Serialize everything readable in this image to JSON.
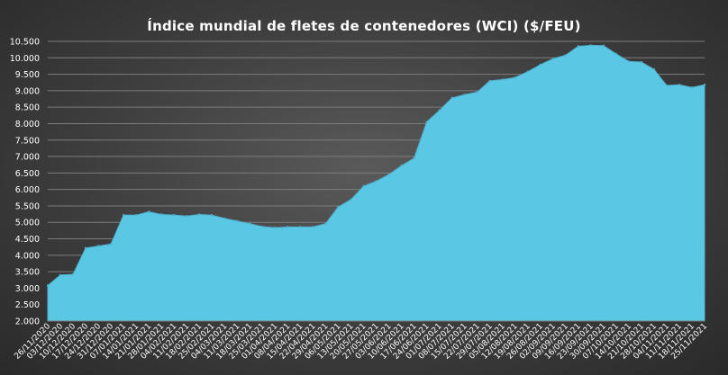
{
  "chart_data": {
    "type": "area",
    "title": "Índice mundial de fletes de contenedores (WCI) ($/FEU)",
    "xlabel": "",
    "ylabel": "",
    "ylim": [
      2000,
      10500
    ],
    "yticks": [
      "2.000",
      "2.500",
      "3.000",
      "3.500",
      "4.000",
      "4.500",
      "5.000",
      "5.500",
      "6.000",
      "6.500",
      "7.000",
      "7.500",
      "8.000",
      "8.500",
      "9.000",
      "9.500",
      "10.000",
      "10.500"
    ],
    "x": [
      "26/11/2020",
      "03/12/2020",
      "10/12/2020",
      "17/12/2020",
      "24/12/2020",
      "31/12/2020",
      "07/01/2021",
      "14/01/2021",
      "21/01/2021",
      "28/01/2021",
      "04/02/2021",
      "11/02/2021",
      "18/02/2021",
      "25/02/2021",
      "04/03/2021",
      "11/03/2021",
      "18/03/2021",
      "25/03/2021",
      "01/04/2021",
      "08/04/2021",
      "15/04/2021",
      "22/04/2021",
      "29/04/2021",
      "06/05/2021",
      "13/05/2021",
      "20/05/2021",
      "27/05/2021",
      "03/06/2021",
      "10/06/2021",
      "17/06/2021",
      "24/06/2021",
      "01/07/2021",
      "08/07/2021",
      "15/07/2021",
      "22/07/2021",
      "29/07/2021",
      "05/08/2021",
      "12/08/2021",
      "19/08/2021",
      "26/08/2021",
      "02/09/2021",
      "09/09/2021",
      "16/09/2021",
      "23/09/2021",
      "30/09/2021",
      "07/10/2021",
      "14/10/2021",
      "21/10/2021",
      "28/10/2021",
      "04/11/2021",
      "11/11/2021",
      "18/11/2021",
      "25/11/2021"
    ],
    "series": [
      {
        "values": [
          3080,
          3400,
          3420,
          4220,
          4280,
          4340,
          5220,
          5220,
          5320,
          5240,
          5220,
          5190,
          5240,
          5220,
          5120,
          5040,
          4960,
          4870,
          4840,
          4860,
          4860,
          4860,
          4960,
          5470,
          5690,
          6100,
          6250,
          6450,
          6720,
          6950,
          8050,
          8400,
          8780,
          8880,
          8960,
          9300,
          9340,
          9400,
          9580,
          9790,
          9970,
          10080,
          10350,
          10380,
          10370,
          10120,
          9890,
          9870,
          9650,
          9160,
          9180,
          9100,
          9180
        ]
      }
    ],
    "grid": true,
    "legend": "none",
    "colors": {
      "fill": "#5ac8e4",
      "stroke": "#4fb0cc",
      "grid": "#7c7c7c",
      "text": "#ffffff"
    }
  }
}
